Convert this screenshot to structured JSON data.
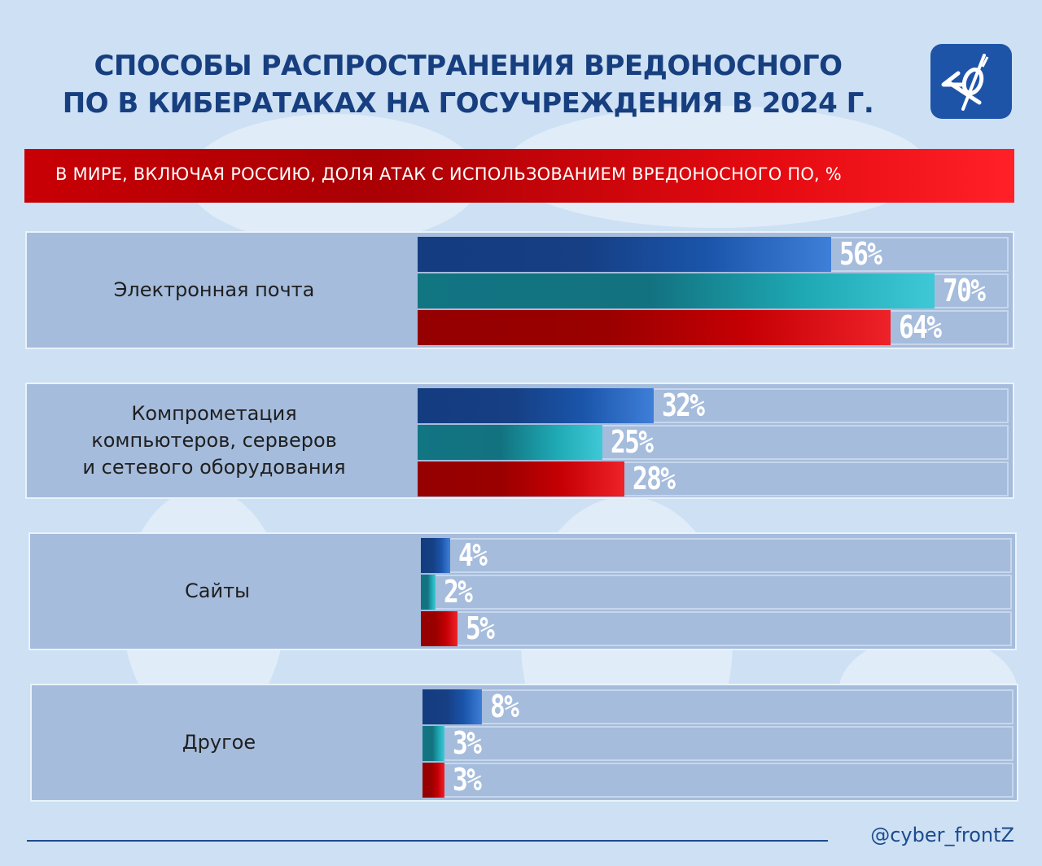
{
  "header": {
    "title_line1": "СПОСОБЫ РАСПРОСТРАНЕНИЯ ВРЕДОНОСНОГО",
    "title_line2": "ПО В КИБЕРАТАКАХ НА ГОСУЧРЕЖДЕНИЯ В 2024 Г.",
    "logo_text": "КФ"
  },
  "banner": {
    "text": "В МИРЕ, ВКЛЮЧАЯ РОССИЮ, ДОЛЯ АТАК С ИСПОЛЬЗОВАНИЕМ ВРЕДОНОСНОГО ПО, %"
  },
  "footer": {
    "handle": "@cyber_frontZ"
  },
  "colors": {
    "title": "#173f80",
    "banner_red": "#d00006",
    "series_blue": "#1a55aa",
    "series_teal": "#1ea9b4",
    "series_red": "#c60004",
    "panel_bg": "#a5bcdc"
  },
  "chart_data": {
    "type": "bar",
    "orientation": "horizontal",
    "title": "В МИРЕ, ВКЛЮЧАЯ РОССИЮ, ДОЛЯ АТАК С ИСПОЛЬЗОВАНИЕМ ВРЕДОНОСНОГО ПО, %",
    "unit": "%",
    "categories": [
      "Электронная почта",
      "Компрометация компьютеров, серверов и сетевого оборудования",
      "Сайты",
      "Другое"
    ],
    "category_lines": [
      [
        "Электронная почта"
      ],
      [
        "Компрометация",
        "компьютеров, серверов",
        "и сетевого оборудования"
      ],
      [
        "Сайты"
      ],
      [
        "Другое"
      ]
    ],
    "series": [
      {
        "name": "blue",
        "color": "#1a55aa",
        "values": [
          56,
          32,
          4,
          8
        ],
        "labels": [
          "56%",
          "32%",
          "4%",
          "8%"
        ]
      },
      {
        "name": "teal",
        "color": "#1ea9b4",
        "values": [
          70,
          25,
          2,
          3
        ],
        "labels": [
          "70%",
          "25%",
          "2%",
          "3%"
        ]
      },
      {
        "name": "red",
        "color": "#c60004",
        "values": [
          64,
          28,
          5,
          3
        ],
        "labels": [
          "64%",
          "28%",
          "5%",
          "3%"
        ]
      }
    ],
    "xlim": [
      0,
      80
    ],
    "grid": false,
    "legend": "none"
  }
}
